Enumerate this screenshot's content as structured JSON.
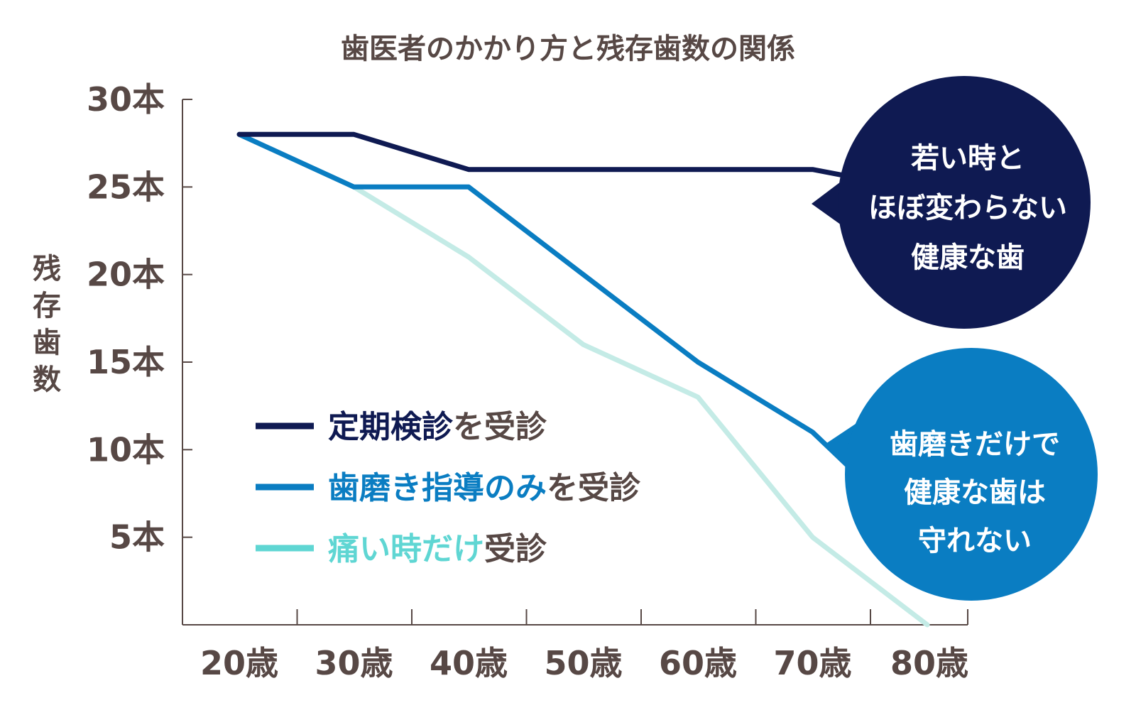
{
  "chart_data": {
    "type": "line",
    "title": "歯医者のかかり方と残存歯数の関係",
    "ylabel": "残存歯数",
    "xlabel": "",
    "categories": [
      "20歳",
      "30歳",
      "40歳",
      "50歳",
      "60歳",
      "70歳",
      "80歳"
    ],
    "y_ticks": [
      {
        "value": 30,
        "label": "30本"
      },
      {
        "value": 25,
        "label": "25本"
      },
      {
        "value": 20,
        "label": "20本"
      },
      {
        "value": 15,
        "label": "15本"
      },
      {
        "value": 10,
        "label": "10本"
      },
      {
        "value": 5,
        "label": "5本"
      }
    ],
    "ylim": [
      0,
      30
    ],
    "grid": false,
    "series": [
      {
        "name": "定期検診を受診",
        "color": "#0f1a52",
        "points": [
          [
            20,
            28
          ],
          [
            30,
            28
          ],
          [
            40,
            26
          ],
          [
            50,
            26
          ],
          [
            60,
            26
          ],
          [
            70,
            26
          ],
          [
            74,
            25.5
          ]
        ]
      },
      {
        "name": "歯磨き指導のみを受診",
        "color": "#0a7dc2",
        "points": [
          [
            20,
            28
          ],
          [
            30,
            25
          ],
          [
            40,
            25
          ],
          [
            50,
            20
          ],
          [
            60,
            15
          ],
          [
            70,
            11
          ],
          [
            74,
            8.5
          ]
        ]
      },
      {
        "name": "痛い時だけ受診",
        "color": "#c4ebe6",
        "points": [
          [
            20,
            28
          ],
          [
            30,
            25
          ],
          [
            40,
            21
          ],
          [
            50,
            16
          ],
          [
            60,
            13
          ],
          [
            70,
            5
          ],
          [
            80,
            0
          ]
        ]
      }
    ],
    "legend": {
      "placement": "center-left",
      "items": [
        {
          "parts": [
            {
              "text": "定期検診",
              "color": "#0f1a52"
            },
            {
              "text": "を受診",
              "color": "#574845"
            }
          ],
          "line_color": "#0f1a52"
        },
        {
          "parts": [
            {
              "text": "歯磨き指導のみ",
              "color": "#0a7dc2"
            },
            {
              "text": "を受診",
              "color": "#574845"
            }
          ],
          "line_color": "#0a7dc2"
        },
        {
          "parts": [
            {
              "text": "痛い時だけ",
              "color": "#5fd6d3"
            },
            {
              "text": "受診",
              "color": "#574845"
            }
          ],
          "line_color": "#5fd6d3"
        }
      ]
    },
    "annotations": [
      {
        "lines": [
          "若い時と",
          "ほぼ変わらない",
          "健康な歯"
        ],
        "color": "#0f1a52"
      },
      {
        "lines": [
          "歯磨きだけで",
          "健康な歯は",
          "守れない"
        ],
        "color": "#0a7dc2"
      }
    ],
    "colors": {
      "text": "#574845",
      "axis": "#574845"
    }
  }
}
